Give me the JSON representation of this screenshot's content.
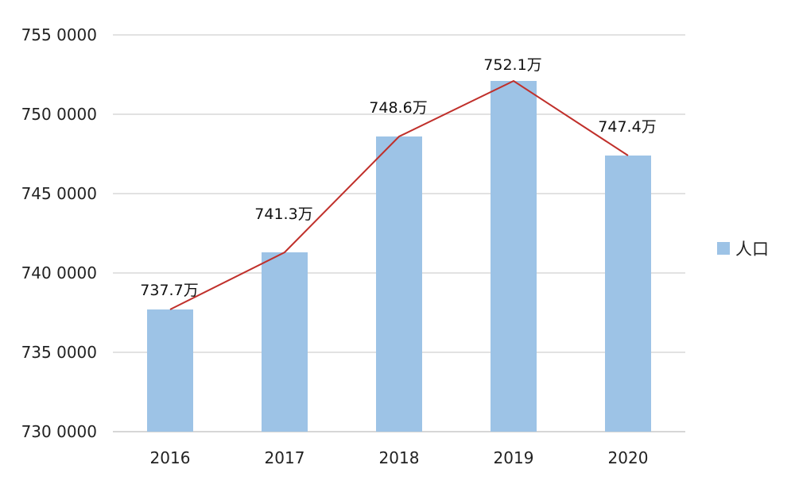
{
  "chart_data": {
    "type": "bar",
    "categories": [
      "2016",
      "2017",
      "2018",
      "2019",
      "2020"
    ],
    "series": [
      {
        "name": "人口",
        "values": [
          7377000,
          7413000,
          7486000,
          7521000,
          7474000
        ],
        "data_labels": [
          "737.7万",
          "741.3万",
          "748.6万",
          "752.1万",
          "747.4万"
        ],
        "color": "#9dc3e6"
      }
    ],
    "overlay_line": {
      "follows_series": "人口",
      "color": "#c0302b"
    },
    "y_ticks": [
      7300000,
      7350000,
      7400000,
      7450000,
      7500000,
      7550000
    ],
    "y_tick_labels": [
      "730 0000",
      "735 0000",
      "740 0000",
      "745 0000",
      "750 0000",
      "755 0000"
    ],
    "ylim": [
      7300000,
      7550000
    ],
    "grid": true,
    "legend_position": "right"
  }
}
